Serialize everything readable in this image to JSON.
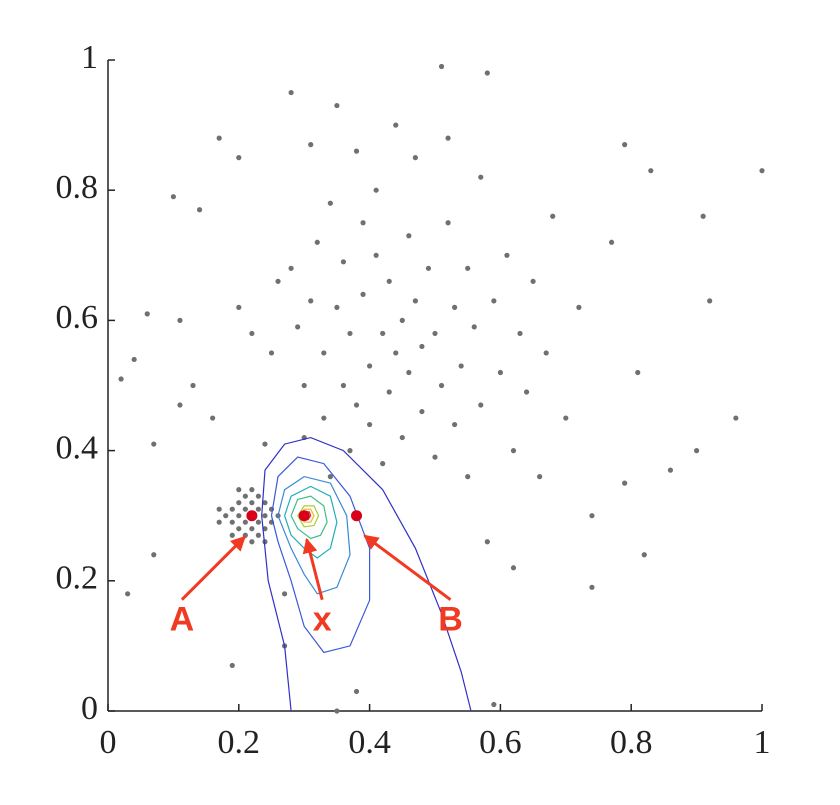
{
  "chart_data": {
    "type": "scatter",
    "color": "#707070",
    "xlim": [
      0,
      1
    ],
    "ylim": [
      0,
      1
    ],
    "xticks": [
      0,
      0.2,
      0.4,
      0.6,
      0.8,
      1
    ],
    "yticks": [
      0,
      0.2,
      0.4,
      0.6,
      0.8,
      1
    ],
    "x": [
      0.18,
      0.19,
      0.19,
      0.2,
      0.2,
      0.2,
      0.21,
      0.21,
      0.21,
      0.21,
      0.22,
      0.22,
      0.22,
      0.22,
      0.23,
      0.23,
      0.23,
      0.23,
      0.24,
      0.24,
      0.24,
      0.25,
      0.25,
      0.26,
      0.17,
      0.17,
      0.2,
      0.2,
      0.19,
      0.24,
      0.03,
      0.02,
      0.04,
      0.06,
      0.07,
      0.07,
      0.1,
      0.11,
      0.11,
      0.13,
      0.14,
      0.16,
      0.17,
      0.19,
      0.2,
      0.2,
      0.22,
      0.24,
      0.25,
      0.26,
      0.27,
      0.27,
      0.28,
      0.28,
      0.29,
      0.3,
      0.3,
      0.31,
      0.31,
      0.32,
      0.33,
      0.33,
      0.34,
      0.34,
      0.35,
      0.35,
      0.35,
      0.36,
      0.36,
      0.37,
      0.37,
      0.38,
      0.38,
      0.38,
      0.39,
      0.39,
      0.4,
      0.4,
      0.41,
      0.41,
      0.42,
      0.42,
      0.43,
      0.43,
      0.44,
      0.44,
      0.45,
      0.45,
      0.46,
      0.46,
      0.47,
      0.47,
      0.48,
      0.48,
      0.49,
      0.5,
      0.5,
      0.51,
      0.51,
      0.52,
      0.52,
      0.53,
      0.53,
      0.54,
      0.55,
      0.55,
      0.56,
      0.57,
      0.57,
      0.58,
      0.58,
      0.59,
      0.59,
      0.6,
      0.61,
      0.62,
      0.62,
      0.63,
      0.64,
      0.65,
      0.66,
      0.67,
      0.68,
      0.7,
      0.72,
      0.74,
      0.74,
      0.77,
      0.79,
      0.79,
      0.81,
      0.82,
      0.83,
      0.86,
      0.9,
      0.91,
      0.92,
      0.96,
      1.0
    ],
    "values": [
      0.3,
      0.31,
      0.29,
      0.32,
      0.28,
      0.3,
      0.31,
      0.29,
      0.33,
      0.27,
      0.32,
      0.28,
      0.26,
      0.34,
      0.31,
      0.29,
      0.27,
      0.33,
      0.3,
      0.32,
      0.28,
      0.31,
      0.29,
      0.3,
      0.29,
      0.31,
      0.26,
      0.34,
      0.27,
      0.26,
      0.18,
      0.51,
      0.54,
      0.61,
      0.24,
      0.41,
      0.79,
      0.6,
      0.47,
      0.5,
      0.77,
      0.45,
      0.88,
      0.07,
      0.85,
      0.62,
      0.58,
      0.41,
      0.55,
      0.66,
      0.18,
      0.1,
      0.95,
      0.68,
      0.59,
      0.5,
      0.42,
      0.63,
      0.87,
      0.72,
      0.45,
      0.55,
      0.78,
      0.36,
      0.0,
      0.93,
      0.62,
      0.5,
      0.69,
      0.4,
      0.58,
      0.86,
      0.47,
      0.03,
      0.64,
      0.75,
      0.53,
      0.44,
      0.7,
      0.8,
      0.58,
      0.38,
      0.49,
      0.66,
      0.9,
      0.55,
      0.6,
      0.42,
      0.73,
      0.52,
      0.85,
      0.63,
      0.46,
      0.56,
      0.68,
      0.39,
      0.58,
      0.99,
      0.5,
      0.75,
      0.88,
      0.62,
      0.44,
      0.53,
      0.68,
      0.36,
      0.59,
      0.47,
      0.82,
      0.98,
      0.26,
      0.63,
      0.01,
      0.52,
      0.7,
      0.4,
      0.22,
      0.58,
      0.49,
      0.66,
      0.36,
      0.55,
      0.76,
      0.45,
      0.62,
      0.3,
      0.19,
      0.72,
      0.35,
      0.87,
      0.52,
      0.24,
      0.83,
      0.37,
      0.4,
      0.76,
      0.63,
      0.45,
      0.83
    ],
    "contours": [
      {
        "color": "#3030c8",
        "x": [
          0.28,
          0.27,
          0.245,
          0.235,
          0.24,
          0.27,
          0.31,
          0.36,
          0.42,
          0.47,
          0.51,
          0.54,
          0.555
        ],
        "y": [
          0.0,
          0.1,
          0.2,
          0.3,
          0.37,
          0.41,
          0.42,
          0.4,
          0.34,
          0.25,
          0.15,
          0.06,
          0.0
        ]
      },
      {
        "color": "#3a5ad8",
        "x": [
          0.25,
          0.26,
          0.29,
          0.33,
          0.37,
          0.4,
          0.4,
          0.37,
          0.33,
          0.3,
          0.28,
          0.26,
          0.25
        ],
        "y": [
          0.3,
          0.36,
          0.39,
          0.38,
          0.33,
          0.25,
          0.17,
          0.1,
          0.09,
          0.13,
          0.2,
          0.26,
          0.3
        ]
      },
      {
        "color": "#3a88d6",
        "x": [
          0.26,
          0.27,
          0.3,
          0.34,
          0.365,
          0.37,
          0.35,
          0.32,
          0.3,
          0.28,
          0.26
        ],
        "y": [
          0.3,
          0.34,
          0.36,
          0.35,
          0.3,
          0.24,
          0.19,
          0.18,
          0.21,
          0.25,
          0.3
        ]
      },
      {
        "color": "#20aeb8",
        "x": [
          0.27,
          0.28,
          0.31,
          0.34,
          0.35,
          0.34,
          0.32,
          0.3,
          0.28,
          0.27
        ],
        "y": [
          0.3,
          0.33,
          0.345,
          0.33,
          0.29,
          0.25,
          0.235,
          0.25,
          0.27,
          0.3
        ]
      },
      {
        "color": "#3cbf8a",
        "x": [
          0.28,
          0.29,
          0.31,
          0.33,
          0.335,
          0.325,
          0.31,
          0.29,
          0.28
        ],
        "y": [
          0.3,
          0.325,
          0.33,
          0.315,
          0.29,
          0.27,
          0.265,
          0.28,
          0.3
        ]
      },
      {
        "color": "#a8cc38",
        "x": [
          0.29,
          0.3,
          0.315,
          0.322,
          0.315,
          0.3,
          0.29
        ],
        "y": [
          0.3,
          0.315,
          0.315,
          0.3,
          0.285,
          0.283,
          0.3
        ]
      },
      {
        "color": "#f0b830",
        "x": [
          0.295,
          0.3,
          0.31,
          0.315,
          0.31,
          0.3,
          0.295
        ],
        "y": [
          0.3,
          0.31,
          0.31,
          0.3,
          0.29,
          0.29,
          0.3
        ]
      },
      {
        "color": "#e03020",
        "x": [
          0.298,
          0.302,
          0.308,
          0.31,
          0.306,
          0.301,
          0.298
        ],
        "y": [
          0.3,
          0.306,
          0.306,
          0.3,
          0.294,
          0.295,
          0.3
        ]
      }
    ],
    "annotations": [
      {
        "text": "A",
        "x": 0.22,
        "y": 0.3
      },
      {
        "text": "x",
        "x": 0.3,
        "y": 0.3
      },
      {
        "text": "B",
        "x": 0.38,
        "y": 0.3
      }
    ],
    "annotation_color": "#f03a22",
    "marker_color": "#d8001a"
  }
}
